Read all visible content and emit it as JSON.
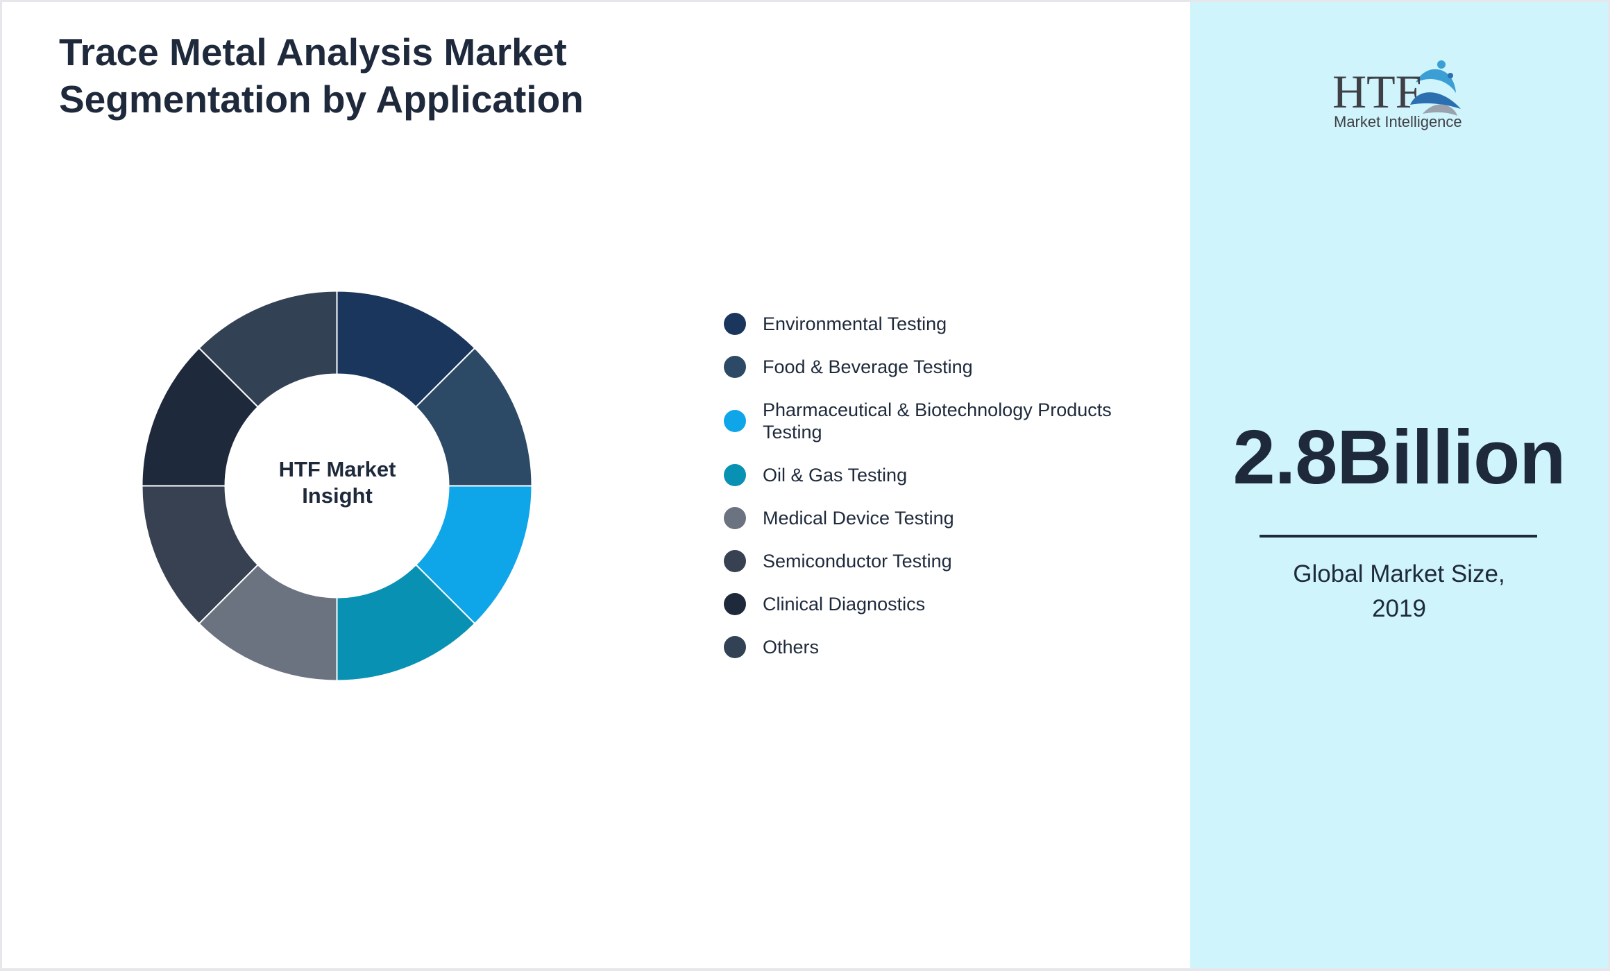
{
  "title": {
    "line1": "Trace Metal Analysis Market",
    "line2": "Segmentation by Application"
  },
  "chart_data": {
    "type": "pie",
    "donut": true,
    "center_label": {
      "line1": "HTF Market",
      "line2": "Insight"
    },
    "categories": [
      "Environmental Testing",
      "Food & Beverage Testing",
      "Pharmaceutical & Biotechnology Products Testing",
      "Oil & Gas Testing",
      "Medical Device Testing",
      "Semiconductor Testing",
      "Clinical Diagnostics",
      "Others"
    ],
    "values": [
      12.5,
      12.5,
      12.5,
      12.5,
      12.5,
      12.5,
      12.5,
      12.5
    ],
    "colors": [
      "#1b365d",
      "#2c4a66",
      "#0ea5e9",
      "#0891b2",
      "#6b7280",
      "#374151",
      "#1e293b",
      "#334155"
    ],
    "legend_placement": "right"
  },
  "legend": {
    "items": [
      {
        "label": "Environmental Testing",
        "color": "#1b365d"
      },
      {
        "label": "Food & Beverage Testing",
        "color": "#2c4a66"
      },
      {
        "label": "Pharmaceutical & Biotechnology Products Testing",
        "color": "#0ea5e9"
      },
      {
        "label": "Oil & Gas Testing",
        "color": "#0891b2"
      },
      {
        "label": "Medical Device Testing",
        "color": "#6b7280"
      },
      {
        "label": "Semiconductor Testing",
        "color": "#374151"
      },
      {
        "label": "Clinical Diagnostics",
        "color": "#1e293b"
      },
      {
        "label": "Others",
        "color": "#334155"
      }
    ]
  },
  "side_panel": {
    "logo": {
      "mark": "HTF",
      "tagline": "Market Intelligence"
    },
    "value": "2.8Billion",
    "caption": {
      "line1": "Global Market Size,",
      "line2": "2019"
    },
    "background": "#cff4fb"
  }
}
